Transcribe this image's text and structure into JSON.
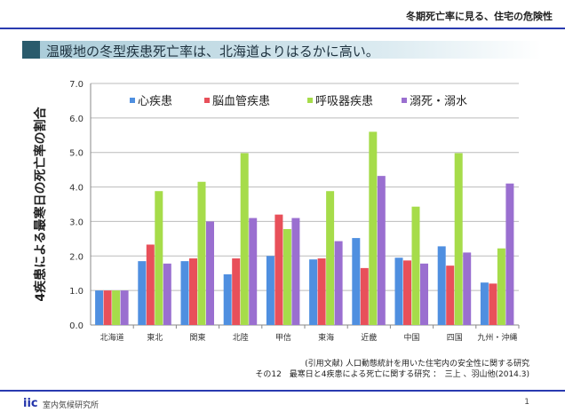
{
  "header": {
    "subtitle": "冬期死亡率に見る、住宅の危険性",
    "title": "温暖地の冬型疾患死亡率は、北海道よりはるかに高い。"
  },
  "footer": {
    "citation_line1": "(引用文献) 人口動態統計を用いた住宅内の安全性に関する研究",
    "citation_line2": "その12　最寒日と4疾患による死亡に関する研究 ：　三上 、羽山他(2014.3)",
    "logo": "iic",
    "org": "室内気候研究所",
    "page": "1"
  },
  "chart_data": {
    "type": "bar",
    "ylabel": "4疾患による最寒日の死亡率の割合",
    "ylim": [
      0,
      7
    ],
    "yticks": [
      "0.0",
      "1.0",
      "2.0",
      "3.0",
      "4.0",
      "5.0",
      "6.0",
      "7.0"
    ],
    "grid": true,
    "legend_position": "top",
    "categories": [
      "北海道",
      "東北",
      "関東",
      "北陸",
      "甲信",
      "東海",
      "近畿",
      "中国",
      "四国",
      "九州・沖縄"
    ],
    "series": [
      {
        "name": "心疾患",
        "color": "#4f8fe0",
        "values": [
          1.0,
          1.85,
          1.85,
          1.47,
          2.0,
          1.9,
          2.52,
          1.95,
          2.28,
          1.23
        ]
      },
      {
        "name": "脳血管疾患",
        "color": "#e8505a",
        "values": [
          1.0,
          2.33,
          1.93,
          1.93,
          3.2,
          1.93,
          1.65,
          1.87,
          1.72,
          1.2
        ]
      },
      {
        "name": "呼吸器疾患",
        "color": "#a6dc4a",
        "values": [
          1.0,
          3.88,
          4.15,
          4.98,
          2.78,
          3.88,
          5.6,
          3.43,
          4.98,
          2.22
        ]
      },
      {
        "name": "溺死・溺水",
        "color": "#9a6fd0",
        "values": [
          1.0,
          1.78,
          3.0,
          3.1,
          3.1,
          2.43,
          4.32,
          1.78,
          2.1,
          4.1
        ]
      }
    ]
  }
}
